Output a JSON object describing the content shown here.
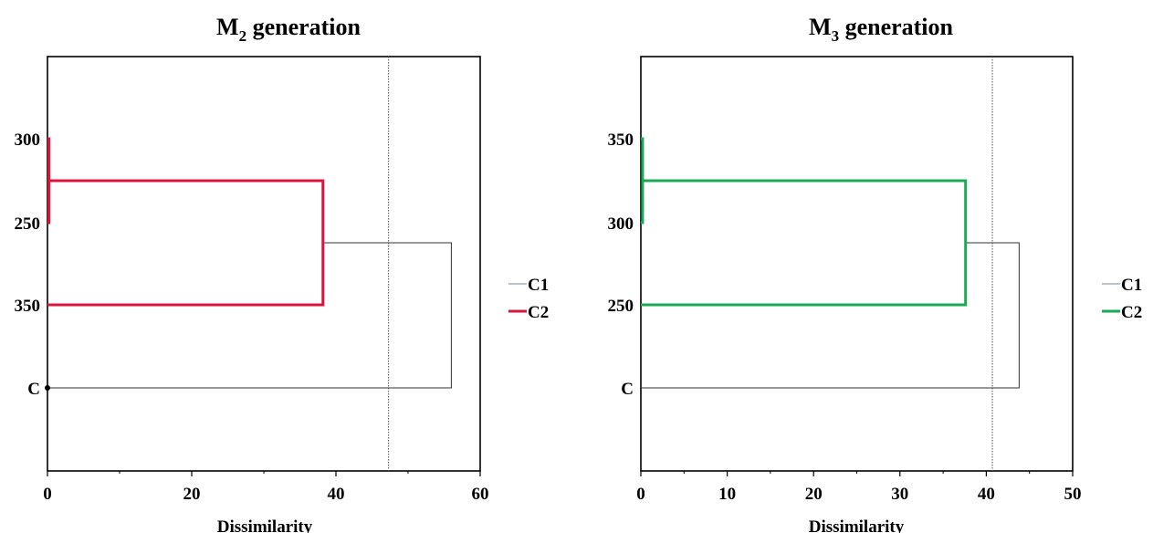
{
  "colors": {
    "c1": "#7a8a96",
    "c2_left": "#dc143c",
    "c2_right": "#1aaa55",
    "cut_line": "#555555"
  },
  "chart_data": [
    {
      "type": "dendrogram",
      "title": {
        "prefix": "M",
        "subscript": "2",
        "suffix": " generation"
      },
      "xlabel": "Dissimilarity",
      "xlim": [
        0,
        60
      ],
      "xticks": [
        "0",
        "20",
        "40",
        "60"
      ],
      "leaves": [
        "300",
        "250",
        "350",
        "C"
      ],
      "truncation_line": 47.3,
      "merges": [
        {
          "children": [
            "300",
            "250"
          ],
          "height": 0.2,
          "class": "C2"
        },
        {
          "children": [
            "300+250",
            "350"
          ],
          "height": 38.2,
          "class": "C2"
        },
        {
          "children": [
            "300+250+350",
            "C"
          ],
          "height": 56.0,
          "class": "C1"
        }
      ],
      "legend": [
        {
          "name": "C1"
        },
        {
          "name": "C2"
        }
      ],
      "accent": "c2_left"
    },
    {
      "type": "dendrogram",
      "title": {
        "prefix": "M",
        "subscript": "3",
        "suffix": " generation"
      },
      "xlabel": "Dissimilarity",
      "xlim": [
        0,
        50
      ],
      "xticks": [
        "0",
        "10",
        "20",
        "30",
        "40",
        "50"
      ],
      "leaves": [
        "350",
        "300",
        "250",
        "C"
      ],
      "truncation_line": 40.7,
      "merges": [
        {
          "children": [
            "350",
            "300"
          ],
          "height": 0.2,
          "class": "C2"
        },
        {
          "children": [
            "350+300",
            "250"
          ],
          "height": 37.6,
          "class": "C2"
        },
        {
          "children": [
            "350+300+250",
            "C"
          ],
          "height": 43.8,
          "class": "C1"
        }
      ],
      "legend": [
        {
          "name": "C1"
        },
        {
          "name": "C2"
        }
      ],
      "accent": "c2_right"
    }
  ]
}
